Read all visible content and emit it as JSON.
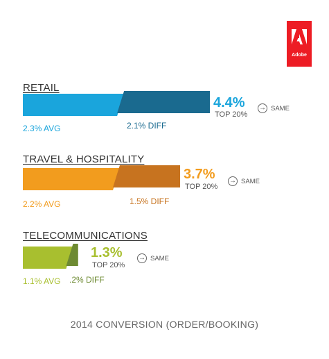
{
  "logo": {
    "text": "Adobe",
    "color": "#ed1c24"
  },
  "sections": [
    {
      "category": "RETAIL",
      "top_value": "4.4%",
      "top_label": "TOP 20%",
      "same_label": "SAME",
      "avg_label": "2.3% AVG",
      "diff_label": "2.1% DIFF",
      "avg_color": "#1aa5dc",
      "diff_color": "#1a6a8f"
    },
    {
      "category": "TRAVEL & HOSPITALITY",
      "top_value": "3.7%",
      "top_label": "TOP 20%",
      "same_label": "SAME",
      "avg_label": "2.2% AVG",
      "diff_label": "1.5% DIFF",
      "avg_color": "#f29c1e",
      "diff_color": "#c7731f"
    },
    {
      "category": "TELECOMMUNICATIONS",
      "top_value": "1.3%",
      "top_label": "TOP 20%",
      "same_label": "SAME",
      "avg_label": "1.1% AVG",
      "diff_label": ".2% DIFF",
      "avg_color": "#a8bf2f",
      "diff_color": "#6d8a32"
    }
  ],
  "footer": "2014 CONVERSION (ORDER/BOOKING)",
  "chart_data": {
    "type": "bar",
    "categories": [
      "RETAIL",
      "TRAVEL & HOSPITALITY",
      "TELECOMMUNICATIONS"
    ],
    "series": [
      {
        "values": [
          2.3,
          2.2,
          1.1
        ]
      },
      {
        "values": [
          2.1,
          1.5,
          0.2
        ]
      }
    ],
    "totals": [
      4.4,
      3.7,
      1.3
    ],
    "stacked": true,
    "orientation": "horizontal",
    "xlim": [
      0,
      4.4
    ]
  }
}
